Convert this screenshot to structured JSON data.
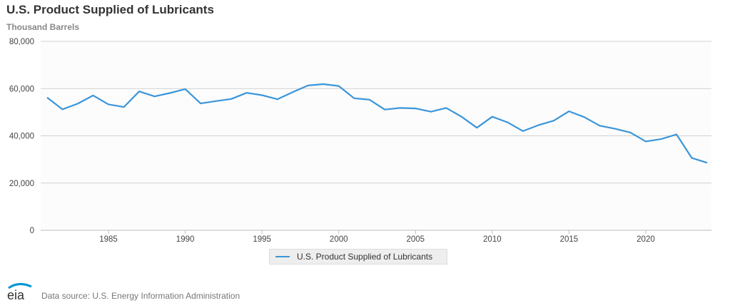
{
  "chart_data": {
    "type": "line",
    "title": "U.S. Product Supplied of Lubricants",
    "subtitle": "Thousand Barrels",
    "xlabel": "",
    "ylabel": "Thousand Barrels",
    "xlim": [
      1981,
      2024
    ],
    "ylim": [
      0,
      80000
    ],
    "yticks": [
      0,
      20000,
      40000,
      60000,
      80000
    ],
    "ytick_labels": [
      "0",
      "20,000",
      "40,000",
      "60,000",
      "80,000"
    ],
    "xticks": [
      1985,
      1990,
      1995,
      2000,
      2005,
      2010,
      2015,
      2020
    ],
    "xtick_labels": [
      "1985",
      "1990",
      "1995",
      "2000",
      "2005",
      "2010",
      "2015",
      "2020"
    ],
    "grid": true,
    "legend_position": "bottom-center",
    "series": [
      {
        "name": "U.S. Product Supplied of Lubricants",
        "color": "#3b95d9",
        "x": [
          1981,
          1982,
          1983,
          1984,
          1985,
          1986,
          1987,
          1988,
          1989,
          1990,
          1991,
          1992,
          1993,
          1994,
          1995,
          1996,
          1997,
          1998,
          1999,
          2000,
          2001,
          2002,
          2003,
          2004,
          2005,
          2006,
          2007,
          2008,
          2009,
          2010,
          2011,
          2012,
          2013,
          2014,
          2015,
          2016,
          2017,
          2018,
          2019,
          2020,
          2021,
          2022,
          2023,
          2024
        ],
        "values": [
          56200,
          51200,
          53600,
          57100,
          53300,
          52200,
          58800,
          56700,
          58100,
          59800,
          53700,
          54700,
          55600,
          58200,
          57200,
          55500,
          58500,
          61300,
          61900,
          61100,
          55900,
          55300,
          51100,
          51800,
          51600,
          50200,
          51800,
          48100,
          43400,
          48100,
          45700,
          42000,
          44500,
          46400,
          50400,
          47900,
          44300,
          43000,
          41400,
          37600,
          38600,
          40600,
          30600,
          28600
        ]
      }
    ]
  },
  "footer": {
    "source": "Data source: U.S. Energy Information Administration",
    "logo_text": "eia"
  }
}
